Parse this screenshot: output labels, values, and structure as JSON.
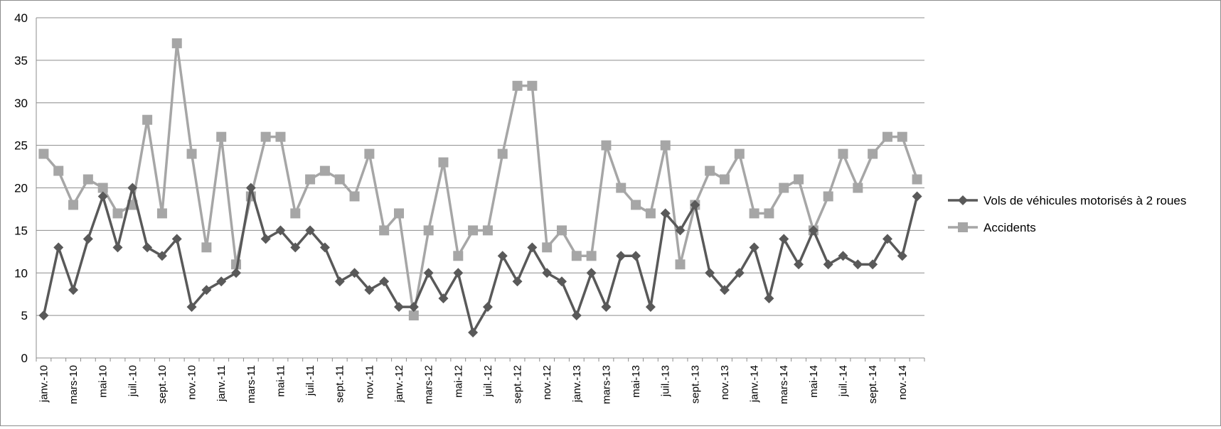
{
  "chart_data": {
    "type": "line",
    "title": "",
    "xlabel": "",
    "ylabel": "",
    "ylim": [
      0,
      40
    ],
    "y_ticks": [
      0,
      5,
      10,
      15,
      20,
      25,
      30,
      35,
      40
    ],
    "grid": true,
    "legend_position": "right",
    "x_tick_labels": [
      "janv.-10",
      "mars-10",
      "mai-10",
      "juil.-10",
      "sept.-10",
      "nov.-10",
      "janv.-11",
      "mars-11",
      "mai-11",
      "juil.-11",
      "sept.-11",
      "nov.-11",
      "janv.-12",
      "mars-12",
      "mai-12",
      "juil.-12",
      "sept.-12",
      "nov.-12",
      "janv.-13",
      "mars-13",
      "mai-13",
      "juil.-13",
      "sept.-13",
      "nov.-13",
      "janv.-14",
      "mars-14",
      "mai-14",
      "juil.-14",
      "sept.-14",
      "nov.-14"
    ],
    "series": [
      {
        "name": "Vols de véhicules motorisés à 2 roues",
        "color": "#595959",
        "marker": "diamond",
        "values": [
          5,
          13,
          8,
          14,
          19,
          13,
          20,
          13,
          12,
          14,
          6,
          8,
          9,
          10,
          20,
          14,
          15,
          13,
          15,
          13,
          9,
          10,
          8,
          9,
          6,
          6,
          10,
          7,
          10,
          3,
          6,
          12,
          9,
          13,
          10,
          9,
          5,
          10,
          6,
          12,
          12,
          6,
          17,
          15,
          18,
          10,
          8,
          10,
          13,
          7,
          14,
          11,
          15,
          11,
          12,
          11,
          11,
          14,
          12,
          19
        ]
      },
      {
        "name": "Accidents",
        "color": "#a6a6a6",
        "marker": "square",
        "values": [
          24,
          22,
          18,
          21,
          20,
          17,
          18,
          28,
          17,
          37,
          24,
          13,
          26,
          11,
          19,
          26,
          26,
          17,
          21,
          22,
          21,
          19,
          24,
          15,
          17,
          5,
          15,
          23,
          12,
          15,
          15,
          24,
          32,
          32,
          13,
          15,
          12,
          12,
          25,
          20,
          18,
          17,
          25,
          11,
          18,
          22,
          21,
          24,
          17,
          17,
          20,
          21,
          15,
          19,
          24,
          20,
          24,
          26,
          26,
          21
        ]
      }
    ]
  }
}
